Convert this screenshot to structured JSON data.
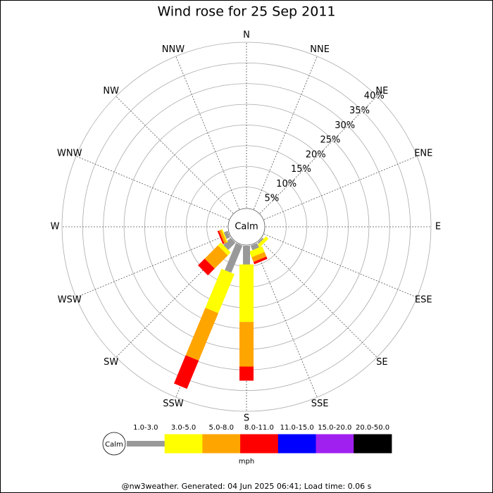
{
  "chart_data": {
    "type": "windrose",
    "title": "Wind rose for 25 Sep 2011",
    "categories": [
      "N",
      "NNE",
      "NE",
      "ENE",
      "E",
      "ESE",
      "SE",
      "SSE",
      "S",
      "SSW",
      "SW",
      "WSW",
      "W",
      "WNW",
      "NW",
      "NNW"
    ],
    "series": [
      {
        "name": "1.0-3.0",
        "color": "#999999",
        "values": [
          0,
          0,
          0,
          0,
          0,
          0,
          0.4,
          1.2,
          4.5,
          7.1,
          2.5,
          1.0,
          0,
          0,
          0,
          0
        ]
      },
      {
        "name": "3.0-5.0",
        "color": "#ffff00",
        "values": [
          0,
          0,
          0,
          0,
          0,
          0,
          0.8,
          1.5,
          13.9,
          10.2,
          1.0,
          0.3,
          0,
          0,
          0,
          0
        ]
      },
      {
        "name": "5.0-8.0",
        "color": "#ffa500",
        "values": [
          0,
          0,
          0,
          0,
          0,
          0,
          0,
          1.2,
          10.8,
          12.4,
          4.5,
          0.6,
          0,
          0,
          0,
          0
        ]
      },
      {
        "name": "8.0-11.0",
        "color": "#ff0000",
        "values": [
          0,
          0,
          0,
          0,
          0,
          0,
          0,
          0.6,
          3.4,
          7.4,
          2.3,
          0.4,
          0,
          0,
          0,
          0
        ]
      },
      {
        "name": "11.0-15.0",
        "color": "#0000ff",
        "values": [
          0,
          0,
          0,
          0,
          0,
          0,
          0,
          0,
          0,
          0,
          0,
          0,
          0,
          0,
          0,
          0
        ]
      },
      {
        "name": "15.0-20.0",
        "color": "#a020f0",
        "values": [
          0,
          0,
          0,
          0,
          0,
          0,
          0,
          0,
          0,
          0,
          0,
          0,
          0,
          0,
          0,
          0
        ]
      },
      {
        "name": "20.0-50.0",
        "color": "#000000",
        "values": [
          0,
          0,
          0,
          0,
          0,
          0,
          0,
          0,
          0,
          0,
          0,
          0,
          0,
          0,
          0,
          0
        ]
      }
    ],
    "rlim": [
      0,
      40
    ],
    "rticks": [
      {
        "value": 5,
        "label": "5%"
      },
      {
        "value": 10,
        "label": "10%"
      },
      {
        "value": 15,
        "label": "15%"
      },
      {
        "value": 20,
        "label": "20%"
      },
      {
        "value": 25,
        "label": "25%"
      },
      {
        "value": 30,
        "label": "30%"
      },
      {
        "value": 35,
        "label": "35%"
      },
      {
        "value": 40,
        "label": "40%"
      }
    ],
    "calm_label": "Calm",
    "legend_unit": "mph",
    "footer": "@nw3weather. Generated: 04 Jun 2025 06:41; Load time: 0.06 s"
  }
}
